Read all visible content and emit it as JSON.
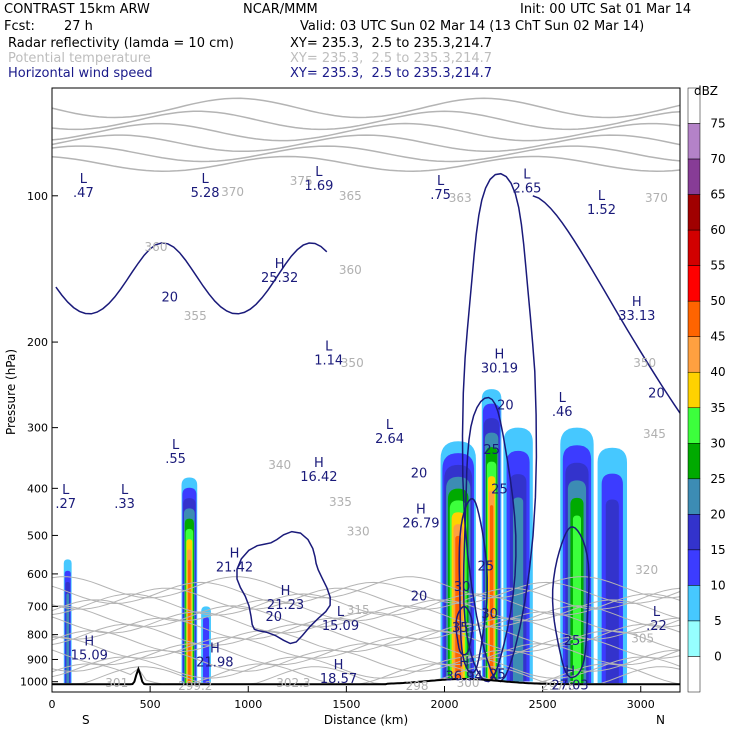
{
  "header": {
    "title_left": "CONTRAST 15km ARW",
    "title_center": "NCAR/MMM",
    "init": "Init: 00 UTC Sat 01 Mar 14",
    "fcst_label": "Fcst:",
    "fcst_value": "27 h",
    "valid": "Valid: 03 UTC Sun 02 Mar 14 (13 ChT Sun 02 Mar 14)",
    "field1": "Radar reflectivity (lamda = 10 cm)",
    "field1_xy": "XY= 235.3,  2.5 to 235.3,214.7",
    "field2": "Potential temperature",
    "field2_xy": "XY= 235.3,  2.5 to 235.3,214.7",
    "field3": "Horizontal wind speed",
    "field3_xy": "XY= 235.3,  2.5 to 235.3,214.7"
  },
  "colors": {
    "wind": "#1a1a7a",
    "theta": "#b4b4b4",
    "terrain": "#000000"
  },
  "chart_data": {
    "type": "heatmap",
    "title": "Radar reflectivity (lamda = 10 cm)",
    "xlabel": "Distance (km)",
    "ylabel": "Pressure (hPa)",
    "xlim": [
      0,
      3200
    ],
    "ylim": [
      1050,
      60
    ],
    "y_scale": "log",
    "x_ticks": [
      0,
      500,
      1000,
      1500,
      2000,
      2500,
      3000
    ],
    "y_ticks": [
      100,
      200,
      300,
      400,
      500,
      600,
      700,
      800,
      900,
      1000
    ],
    "x_end_labels": {
      "left": "S",
      "right": "N"
    },
    "colorbar": {
      "unit": "dBZ",
      "levels": [
        0,
        5,
        10,
        15,
        20,
        25,
        30,
        35,
        40,
        45,
        50,
        55,
        60,
        65,
        70,
        75
      ],
      "colors": [
        "#ffffff",
        "#96ffff",
        "#46c8ff",
        "#3c3cff",
        "#3333cc",
        "#3c8cb4",
        "#00aa00",
        "#3cff3c",
        "#ffd200",
        "#ffa040",
        "#ff6400",
        "#ff0000",
        "#d20000",
        "#a00000",
        "#873c96",
        "#b482c8",
        "#ffffff"
      ]
    },
    "reflectivity_cells": [
      {
        "x_range": [
          60,
          100
        ],
        "p_top": 560,
        "levels": [
          5,
          10,
          15,
          20
        ]
      },
      {
        "x_range": [
          660,
          740
        ],
        "p_top": 380,
        "levels": [
          5,
          10,
          15,
          20,
          25,
          30,
          35,
          40,
          45
        ]
      },
      {
        "x_range": [
          760,
          810
        ],
        "p_top": 700,
        "levels": [
          5,
          10
        ]
      },
      {
        "x_range": [
          1980,
          2160
        ],
        "p_top": 320,
        "levels": [
          5,
          10,
          15,
          20,
          25,
          30,
          35,
          40,
          45
        ]
      },
      {
        "x_range": [
          2190,
          2290
        ],
        "p_top": 250,
        "levels": [
          5,
          10,
          15,
          20,
          25,
          30,
          35,
          40,
          45
        ]
      },
      {
        "x_range": [
          2300,
          2450
        ],
        "p_top": 300,
        "levels": [
          5,
          10,
          15,
          20
        ]
      },
      {
        "x_range": [
          2590,
          2760
        ],
        "p_top": 300,
        "levels": [
          5,
          10,
          15,
          20,
          25,
          30
        ]
      },
      {
        "x_range": [
          2780,
          2930
        ],
        "p_top": 330,
        "levels": [
          5,
          10,
          15
        ]
      }
    ],
    "theta_labels": [
      {
        "text": "370",
        "x": 920,
        "p": 100
      },
      {
        "text": "375",
        "x": 1270,
        "p": 95
      },
      {
        "text": "365",
        "x": 1520,
        "p": 102
      },
      {
        "text": "363",
        "x": 2080,
        "p": 103
      },
      {
        "text": "370",
        "x": 3080,
        "p": 103
      },
      {
        "text": "360",
        "x": 530,
        "p": 130
      },
      {
        "text": "360",
        "x": 1520,
        "p": 145
      },
      {
        "text": "355",
        "x": 730,
        "p": 180
      },
      {
        "text": "350",
        "x": 1530,
        "p": 225
      },
      {
        "text": "350",
        "x": 3020,
        "p": 225
      },
      {
        "text": "345",
        "x": 3070,
        "p": 315
      },
      {
        "text": "340",
        "x": 1160,
        "p": 365
      },
      {
        "text": "335",
        "x": 1470,
        "p": 435
      },
      {
        "text": "330",
        "x": 1560,
        "p": 500
      },
      {
        "text": "320",
        "x": 3030,
        "p": 600
      },
      {
        "text": "315",
        "x": 1560,
        "p": 725
      },
      {
        "text": "305",
        "x": 3010,
        "p": 830
      },
      {
        "text": "301",
        "x": 330,
        "p": 1025
      },
      {
        "text": "299.2",
        "x": 730,
        "p": 1040
      },
      {
        "text": "302.3",
        "x": 1230,
        "p": 1025
      },
      {
        "text": "297.8",
        "x": 2580,
        "p": 1040
      },
      {
        "text": "300",
        "x": 2120,
        "p": 1025
      },
      {
        "text": "298",
        "x": 1860,
        "p": 1040
      }
    ],
    "wind_contour_labels": [
      {
        "text": "20",
        "x": 600,
        "p": 165
      },
      {
        "text": "20",
        "x": 3080,
        "p": 260
      },
      {
        "text": "20",
        "x": 1870,
        "p": 380
      },
      {
        "text": "20",
        "x": 2310,
        "p": 275
      },
      {
        "text": "25",
        "x": 2240,
        "p": 340
      },
      {
        "text": "25",
        "x": 2280,
        "p": 410
      },
      {
        "text": "25",
        "x": 2210,
        "p": 590
      },
      {
        "text": "30",
        "x": 2090,
        "p": 650
      },
      {
        "text": "30",
        "x": 2230,
        "p": 740
      },
      {
        "text": "35",
        "x": 2080,
        "p": 790
      },
      {
        "text": "25",
        "x": 2650,
        "p": 840
      },
      {
        "text": "25",
        "x": 2270,
        "p": 985
      },
      {
        "text": "20",
        "x": 1870,
        "p": 680
      },
      {
        "text": "20",
        "x": 1130,
        "p": 750
      }
    ],
    "extrema": [
      {
        "kind": "L",
        "value": ".47",
        "x": 160,
        "p": 95
      },
      {
        "kind": "L",
        "value": "5.28",
        "x": 780,
        "p": 95
      },
      {
        "kind": "L",
        "value": "1.69",
        "x": 1360,
        "p": 92
      },
      {
        "kind": "L",
        "value": ".75",
        "x": 1980,
        "p": 96
      },
      {
        "kind": "L",
        "value": "2.65",
        "x": 2420,
        "p": 93
      },
      {
        "kind": "L",
        "value": "1.52",
        "x": 2800,
        "p": 103
      },
      {
        "kind": "H",
        "value": "25.32",
        "x": 1160,
        "p": 142
      },
      {
        "kind": "H",
        "value": "33.13",
        "x": 2980,
        "p": 170
      },
      {
        "kind": "L",
        "value": "1.14",
        "x": 1410,
        "p": 210
      },
      {
        "kind": "H",
        "value": "30.19",
        "x": 2280,
        "p": 218
      },
      {
        "kind": "L",
        "value": ".46",
        "x": 2600,
        "p": 268
      },
      {
        "kind": "L",
        "value": "2.64",
        "x": 1720,
        "p": 305
      },
      {
        "kind": "L",
        "value": ".55",
        "x": 630,
        "p": 335
      },
      {
        "kind": "H",
        "value": "16.42",
        "x": 1360,
        "p": 365
      },
      {
        "kind": "L",
        "value": ".27",
        "x": 70,
        "p": 415
      },
      {
        "kind": "L",
        "value": ".33",
        "x": 370,
        "p": 415
      },
      {
        "kind": "H",
        "value": "26.79",
        "x": 1880,
        "p": 455
      },
      {
        "kind": "H",
        "value": "21.42",
        "x": 930,
        "p": 560
      },
      {
        "kind": "H",
        "value": "21.23",
        "x": 1190,
        "p": 670
      },
      {
        "kind": "L",
        "value": "15.09",
        "x": 1470,
        "p": 740
      },
      {
        "kind": "L",
        "value": ".22",
        "x": 3080,
        "p": 740
      },
      {
        "kind": "H",
        "value": "15.09",
        "x": 190,
        "p": 850
      },
      {
        "kind": "H",
        "value": "21.98",
        "x": 830,
        "p": 880
      },
      {
        "kind": "H",
        "value": "18.57",
        "x": 1460,
        "p": 950
      },
      {
        "kind": "H",
        "value": "36.94",
        "x": 2100,
        "p": 940
      },
      {
        "kind": "H",
        "value": "27.03",
        "x": 2640,
        "p": 980
      }
    ]
  }
}
